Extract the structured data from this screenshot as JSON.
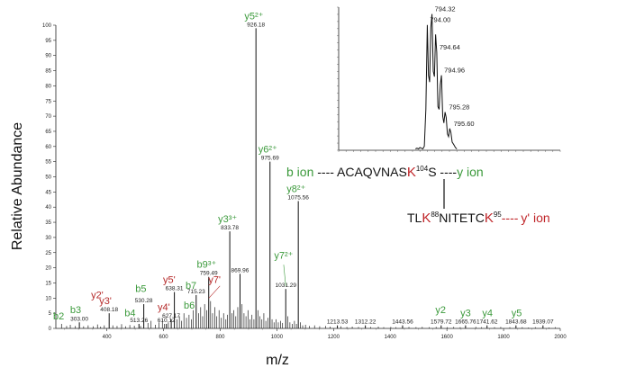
{
  "chart_data": {
    "type": "bar",
    "xlabel": "m/z",
    "ylabel": "Relative Abundance",
    "xlim": [
      220,
      2000
    ],
    "ylim": [
      0,
      100
    ],
    "x_ticks": [
      400,
      600,
      800,
      1000,
      1200,
      1400,
      1600,
      1800,
      2000
    ],
    "y_ticks": [
      0,
      5,
      10,
      15,
      20,
      25,
      30,
      35,
      40,
      45,
      50,
      55,
      60,
      65,
      70,
      75,
      80,
      85,
      90,
      95,
      100
    ],
    "peaks": [
      {
        "mz": 303.0,
        "y": 2,
        "label": "303.00"
      },
      {
        "mz": 408.18,
        "y": 5,
        "label": "408.18"
      },
      {
        "mz": 513.26,
        "y": 1.5,
        "label": "513.26"
      },
      {
        "mz": 530.28,
        "y": 8,
        "label": "530.28"
      },
      {
        "mz": 610.12,
        "y": 1.5,
        "label": "610.12"
      },
      {
        "mz": 627.17,
        "y": 3,
        "label": "627.17"
      },
      {
        "mz": 638.31,
        "y": 12,
        "label": "638.31"
      },
      {
        "mz": 715.23,
        "y": 11,
        "label": "715.23"
      },
      {
        "mz": 759.49,
        "y": 17,
        "label": "759.49"
      },
      {
        "mz": 833.78,
        "y": 32,
        "label": "833.78"
      },
      {
        "mz": 869.96,
        "y": 18,
        "label": "869.96"
      },
      {
        "mz": 926.18,
        "y": 99,
        "label": "926.18"
      },
      {
        "mz": 975.69,
        "y": 55,
        "label": "975.69"
      },
      {
        "mz": 1031.29,
        "y": 13,
        "label": "1031.29"
      },
      {
        "mz": 1075.56,
        "y": 42,
        "label": "1075.56"
      },
      {
        "mz": 1213.53,
        "y": 1,
        "label": "1213.53"
      },
      {
        "mz": 1312.22,
        "y": 1,
        "label": "1312.22"
      },
      {
        "mz": 1443.56,
        "y": 1,
        "label": "1443.56"
      },
      {
        "mz": 1579.72,
        "y": 1,
        "label": "1579.72"
      },
      {
        "mz": 1665.76,
        "y": 1,
        "label": "1665.76"
      },
      {
        "mz": 1741.62,
        "y": 1,
        "label": "1741.62"
      },
      {
        "mz": 1843.68,
        "y": 1,
        "label": "1843.68"
      },
      {
        "mz": 1939.07,
        "y": 1,
        "label": "1939.07"
      }
    ],
    "minor_peaks": [
      [
        240,
        1.5
      ],
      [
        258,
        0.8
      ],
      [
        271,
        1.2
      ],
      [
        289,
        0.8
      ],
      [
        318,
        0.7
      ],
      [
        334,
        1
      ],
      [
        352,
        0.7
      ],
      [
        367,
        1.3
      ],
      [
        378,
        0.6
      ],
      [
        391,
        1
      ],
      [
        421,
        1
      ],
      [
        436,
        0.8
      ],
      [
        452,
        1.4
      ],
      [
        466,
        0.7
      ],
      [
        481,
        1.1
      ],
      [
        497,
        0.9
      ],
      [
        519,
        0.8
      ],
      [
        545,
        1.8
      ],
      [
        556,
        2.5
      ],
      [
        571,
        1.2
      ],
      [
        584,
        2
      ],
      [
        596,
        3
      ],
      [
        603,
        1.5
      ],
      [
        617,
        2
      ],
      [
        648,
        3
      ],
      [
        656,
        4
      ],
      [
        664,
        2.5
      ],
      [
        672,
        5
      ],
      [
        681,
        3.5
      ],
      [
        690,
        4.5
      ],
      [
        698,
        3
      ],
      [
        705,
        6
      ],
      [
        724,
        5
      ],
      [
        731,
        7
      ],
      [
        738,
        4
      ],
      [
        745,
        8
      ],
      [
        752,
        6
      ],
      [
        766,
        9
      ],
      [
        773,
        5
      ],
      [
        781,
        7
      ],
      [
        788,
        4
      ],
      [
        796,
        6
      ],
      [
        804,
        3.5
      ],
      [
        812,
        5
      ],
      [
        820,
        3
      ],
      [
        826,
        4.5
      ],
      [
        841,
        5
      ],
      [
        848,
        6
      ],
      [
        855,
        4
      ],
      [
        862,
        7
      ],
      [
        877,
        8
      ],
      [
        884,
        5
      ],
      [
        891,
        4
      ],
      [
        898,
        6
      ],
      [
        905,
        3
      ],
      [
        912,
        4.5
      ],
      [
        919,
        3
      ],
      [
        933,
        6
      ],
      [
        940,
        4
      ],
      [
        947,
        3
      ],
      [
        954,
        5
      ],
      [
        961,
        2.5
      ],
      [
        968,
        3.5
      ],
      [
        983,
        3
      ],
      [
        990,
        2
      ],
      [
        997,
        3
      ],
      [
        1005,
        2
      ],
      [
        1013,
        2.5
      ],
      [
        1020,
        1.8
      ],
      [
        1038,
        4
      ],
      [
        1046,
        2
      ],
      [
        1054,
        1.5
      ],
      [
        1062,
        2.5
      ],
      [
        1069,
        1.5
      ],
      [
        1083,
        2
      ],
      [
        1091,
        1
      ],
      [
        1101,
        1.2
      ],
      [
        1115,
        0.8
      ],
      [
        1133,
        1
      ],
      [
        1151,
        0.7
      ],
      [
        1172,
        0.8
      ],
      [
        1188,
        0.6
      ],
      [
        1226,
        0.7
      ],
      [
        1247,
        0.5
      ],
      [
        1266,
        0.6
      ],
      [
        1288,
        0.5
      ],
      [
        1331,
        0.5
      ],
      [
        1358,
        0.6
      ],
      [
        1377,
        0.4
      ],
      [
        1402,
        0.5
      ],
      [
        1420,
        0.4
      ],
      [
        1466,
        0.5
      ],
      [
        1491,
        0.4
      ],
      [
        1513,
        0.5
      ],
      [
        1538,
        0.4
      ],
      [
        1562,
        0.5
      ],
      [
        1601,
        0.4
      ],
      [
        1624,
        0.5
      ],
      [
        1647,
        0.4
      ],
      [
        1702,
        0.5
      ],
      [
        1722,
        0.4
      ],
      [
        1768,
        0.4
      ],
      [
        1790,
        0.5
      ],
      [
        1822,
        0.4
      ],
      [
        1866,
        0.4
      ],
      [
        1888,
        0.3
      ],
      [
        1912,
        0.4
      ],
      [
        1960,
        0.3
      ],
      [
        1982,
        0.4
      ]
    ],
    "ion_annotations": [
      {
        "text": "b2",
        "mz": 230,
        "y": 3,
        "color": "#3c9a3c"
      },
      {
        "text": "b3",
        "mz": 290,
        "y": 5,
        "color": "#3c9a3c"
      },
      {
        "text": "y2'",
        "mz": 366,
        "y": 10,
        "color": "#b52a2a"
      },
      {
        "text": "y3'",
        "mz": 395,
        "y": 8,
        "color": "#b52a2a"
      },
      {
        "text": "b4",
        "mz": 482,
        "y": 4,
        "color": "#3c9a3c"
      },
      {
        "text": "b5",
        "mz": 520,
        "y": 12,
        "color": "#3c9a3c"
      },
      {
        "text": "y4'",
        "mz": 601,
        "y": 6,
        "color": "#b52a2a"
      },
      {
        "text": "b6",
        "mz": 691,
        "y": 6.5,
        "color": "#3c9a3c"
      },
      {
        "text": "y5'",
        "mz": 620,
        "y": 15,
        "color": "#b52a2a"
      },
      {
        "text": "b7",
        "mz": 697,
        "y": 13,
        "color": "#3c9a3c"
      },
      {
        "text": "y7'",
        "mz": 780,
        "y": 15,
        "color": "#b52a2a"
      },
      {
        "text": "b9³⁺",
        "mz": 752,
        "y": 20,
        "color": "#3c9a3c"
      },
      {
        "text": "y3³⁺",
        "mz": 826,
        "y": 35,
        "color": "#3c9a3c"
      },
      {
        "text": "y5²⁺",
        "mz": 919,
        "y": 102,
        "color": "#3c9a3c"
      },
      {
        "text": "y6²⁺",
        "mz": 968,
        "y": 58,
        "color": "#3c9a3c"
      },
      {
        "text": "y8²⁺",
        "mz": 1068,
        "y": 45,
        "color": "#3c9a3c"
      },
      {
        "text": "y7²⁺",
        "mz": 1024,
        "y": 23,
        "color": "#3c9a3c"
      },
      {
        "text": "y2",
        "mz": 1578,
        "y": 5,
        "color": "#3c9a3c"
      },
      {
        "text": "y3",
        "mz": 1666,
        "y": 4,
        "color": "#3c9a3c"
      },
      {
        "text": "y4",
        "mz": 1743,
        "y": 4,
        "color": "#3c9a3c"
      },
      {
        "text": "y5",
        "mz": 1846,
        "y": 4,
        "color": "#3c9a3c"
      }
    ],
    "inset": {
      "x": [
        793.2,
        793.3,
        793.4,
        793.5,
        793.6,
        793.7,
        793.8,
        793.9,
        794.0,
        794.08,
        794.16,
        794.24,
        794.32,
        794.4,
        794.48,
        794.56,
        794.64,
        794.72,
        794.8,
        794.88,
        794.96,
        795.04,
        795.12,
        795.2,
        795.28,
        795.36,
        795.44,
        795.52,
        795.6,
        795.68,
        795.8,
        795.9,
        796.0
      ],
      "y": [
        1,
        1.5,
        1,
        2,
        1.5,
        1,
        3,
        30,
        92,
        55,
        50,
        90,
        100,
        58,
        54,
        85,
        72,
        32,
        30,
        48,
        55,
        25,
        20,
        28,
        24,
        12,
        10,
        16,
        13,
        6,
        4,
        2,
        1
      ],
      "xlim": [
        788,
        803
      ],
      "ylim": [
        0,
        105
      ],
      "labels": [
        {
          "text": "794.32",
          "x": 794.32,
          "y": 100
        },
        {
          "text": "794.00",
          "x": 794.0,
          "y": 92
        },
        {
          "text": "794.64",
          "x": 794.64,
          "y": 72
        },
        {
          "text": "794.96",
          "x": 794.96,
          "y": 55
        },
        {
          "text": "795.28",
          "x": 795.28,
          "y": 28
        },
        {
          "text": "795.60",
          "x": 795.6,
          "y": 16
        }
      ]
    },
    "peptide_top": {
      "left_label": "b ion",
      "dashes_left": " ---- ",
      "seq_a": "ACAQVNAS",
      "mod_residue": "K",
      "mod_number": "104",
      "seq_b": "S",
      "dashes_right": " ----",
      "right_label": "y ion"
    },
    "peptide_bottom": {
      "seq_a": "TL",
      "res1": "K",
      "num1": "88",
      "seq_b": "NITETC",
      "res2": "K",
      "num2": "95",
      "dashes": "----",
      "label": "y' ion"
    },
    "colors": {
      "green": "#3c9a3c",
      "red": "#b52a2a",
      "peak": "#111111"
    }
  }
}
